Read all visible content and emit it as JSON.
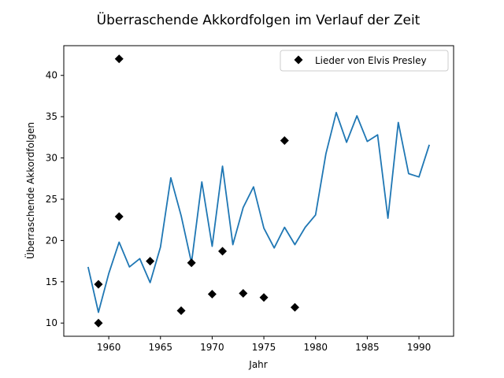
{
  "chart_data": {
    "type": "line",
    "title": "Überraschende Akkordfolgen im Verlauf der Zeit",
    "xlabel": "Jahr",
    "ylabel": "Überraschende Akkordfolgen",
    "xlim": [
      1955.65,
      1993.35
    ],
    "ylim": [
      8.4,
      43.6
    ],
    "x_ticks": [
      1960,
      1965,
      1970,
      1975,
      1980,
      1985,
      1990
    ],
    "y_ticks": [
      10,
      15,
      20,
      25,
      30,
      35,
      40
    ],
    "grid": false,
    "legend_position": "top-right",
    "series": [
      {
        "kind": "line",
        "color": "#1f77b4",
        "x": [
          1958,
          1959,
          1960,
          1961,
          1962,
          1963,
          1964,
          1965,
          1966,
          1967,
          1968,
          1969,
          1970,
          1971,
          1972,
          1973,
          1974,
          1975,
          1976,
          1977,
          1978,
          1979,
          1980,
          1981,
          1982,
          1983,
          1984,
          1985,
          1986,
          1987,
          1988,
          1989,
          1990,
          1991
        ],
        "y": [
          16.8,
          11.3,
          16.0,
          19.8,
          16.8,
          17.8,
          14.9,
          19.2,
          27.6,
          23.0,
          17.3,
          27.1,
          19.3,
          29.0,
          19.5,
          24.0,
          26.5,
          21.5,
          19.1,
          21.6,
          19.5,
          21.6,
          23.1,
          30.5,
          35.5,
          31.9,
          35.1,
          32.0,
          32.8,
          22.7,
          34.3,
          28.1,
          27.7,
          31.6
        ]
      },
      {
        "kind": "scatter",
        "name": "Lieder von Elvis Presley",
        "color": "#000000",
        "marker": "diamond",
        "x": [
          1959,
          1959,
          1961,
          1961,
          1964,
          1967,
          1968,
          1970,
          1971,
          1973,
          1975,
          1977,
          1978
        ],
        "y": [
          14.7,
          10.0,
          42.0,
          22.9,
          17.5,
          11.5,
          17.3,
          13.5,
          18.7,
          13.6,
          13.1,
          32.1,
          11.9
        ]
      }
    ]
  }
}
